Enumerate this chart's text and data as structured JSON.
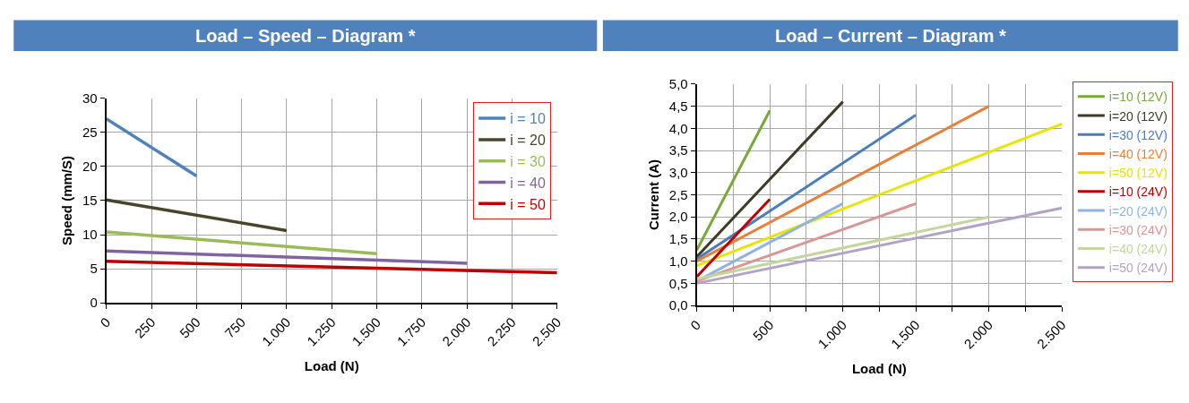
{
  "chart_data": [
    {
      "type": "line",
      "title": "Load – Speed – Diagram *",
      "xlabel": "Load (N)",
      "ylabel": "Speed (mm/S)",
      "xlim": [
        0,
        2500
      ],
      "xticks": [
        0,
        250,
        500,
        750,
        {
          "value": 1000,
          "label": "1.000"
        },
        {
          "value": 1250,
          "label": "1.250"
        },
        {
          "value": 1500,
          "label": "1.500"
        },
        {
          "value": 1750,
          "label": "1.750"
        },
        {
          "value": 2000,
          "label": "2.000"
        },
        {
          "value": 2250,
          "label": "2.250"
        },
        {
          "value": 2500,
          "label": "2.500"
        }
      ],
      "ylim": [
        0,
        30
      ],
      "yticks": [
        0,
        5,
        10,
        15,
        20,
        25,
        30
      ],
      "grid": true,
      "legend": "top right",
      "marker": "none",
      "line_style": "solid",
      "series": [
        {
          "name": "i = 10",
          "color": "#4f81bd",
          "x": [
            0,
            500
          ],
          "values": [
            27,
            18.6
          ]
        },
        {
          "name": "i = 20",
          "color": "#4a452a",
          "x": [
            0,
            1000
          ],
          "values": [
            15.1,
            10.6
          ]
        },
        {
          "name": "i = 30",
          "color": "#9bbb59",
          "x": [
            0,
            1500
          ],
          "values": [
            10.4,
            7.2
          ]
        },
        {
          "name": "i = 40",
          "color": "#8064a2",
          "x": [
            0,
            2000
          ],
          "values": [
            7.6,
            5.8
          ]
        },
        {
          "name": "i = 50",
          "color": "#c00000",
          "x": [
            0,
            2500
          ],
          "values": [
            6.1,
            4.4
          ]
        }
      ]
    },
    {
      "type": "line",
      "title": "Load – Current – Diagram *",
      "xlabel": "Load (N)",
      "ylabel": "Current (A)",
      "xlim": [
        0,
        2500
      ],
      "xticks": [
        0,
        {
          "value": 250,
          "label": null
        },
        500,
        {
          "value": 750,
          "label": null
        },
        {
          "value": 1000,
          "label": "1.000"
        },
        {
          "value": 1250,
          "label": null
        },
        {
          "value": 1500,
          "label": "1.500"
        },
        {
          "value": 1750,
          "label": null
        },
        {
          "value": 2000,
          "label": "2.000"
        },
        {
          "value": 2250,
          "label": null
        },
        {
          "value": 2500,
          "label": "2.500"
        }
      ],
      "ylim": [
        0,
        5
      ],
      "yticks": [
        {
          "value": 0,
          "label": "0,0"
        },
        {
          "value": 0.5,
          "label": "0,5"
        },
        {
          "value": 1,
          "label": "1,0"
        },
        {
          "value": 1.5,
          "label": "1,5"
        },
        {
          "value": 2,
          "label": "2,0"
        },
        {
          "value": 2.5,
          "label": "2,5"
        },
        {
          "value": 3,
          "label": "3,0"
        },
        {
          "value": 3.5,
          "label": "3,5"
        },
        {
          "value": 4,
          "label": "4,0"
        },
        {
          "value": 4.5,
          "label": "4,5"
        },
        {
          "value": 5,
          "label": "5,0"
        }
      ],
      "grid": true,
      "legend": "right",
      "marker": "none",
      "line_style": "solid",
      "series": [
        {
          "name": "i=10 (12V)",
          "color": "#77a83a",
          "x": [
            0,
            500
          ],
          "values": [
            1.25,
            4.4
          ]
        },
        {
          "name": "i=20 (12V)",
          "color": "#3f3a26",
          "x": [
            0,
            1000
          ],
          "values": [
            1.1,
            4.6
          ]
        },
        {
          "name": "i=30 (12V)",
          "color": "#4a7ebb",
          "x": [
            0,
            1500
          ],
          "values": [
            1.05,
            4.3
          ]
        },
        {
          "name": "i=40 (12V)",
          "color": "#e8803a",
          "x": [
            0,
            2000
          ],
          "values": [
            1.0,
            4.5
          ]
        },
        {
          "name": "i=50 (12V)",
          "color": "#e6e600",
          "x": [
            0,
            2500
          ],
          "values": [
            0.9,
            4.1
          ]
        },
        {
          "name": "i=10 (24V)",
          "color": "#c00000",
          "x": [
            0,
            500
          ],
          "values": [
            0.65,
            2.4
          ]
        },
        {
          "name": "i=20 (24V)",
          "color": "#8eb4e3",
          "x": [
            0,
            1000
          ],
          "values": [
            0.55,
            2.3
          ]
        },
        {
          "name": "i=30 (24V)",
          "color": "#d99694",
          "x": [
            0,
            1500
          ],
          "values": [
            0.55,
            2.3
          ]
        },
        {
          "name": "i=40 (24V)",
          "color": "#c3d69b",
          "x": [
            0,
            2000
          ],
          "values": [
            0.6,
            2.0
          ]
        },
        {
          "name": "i=50 (24V)",
          "color": "#b3a2c7",
          "x": [
            0,
            2500
          ],
          "values": [
            0.5,
            2.2
          ]
        }
      ]
    }
  ]
}
